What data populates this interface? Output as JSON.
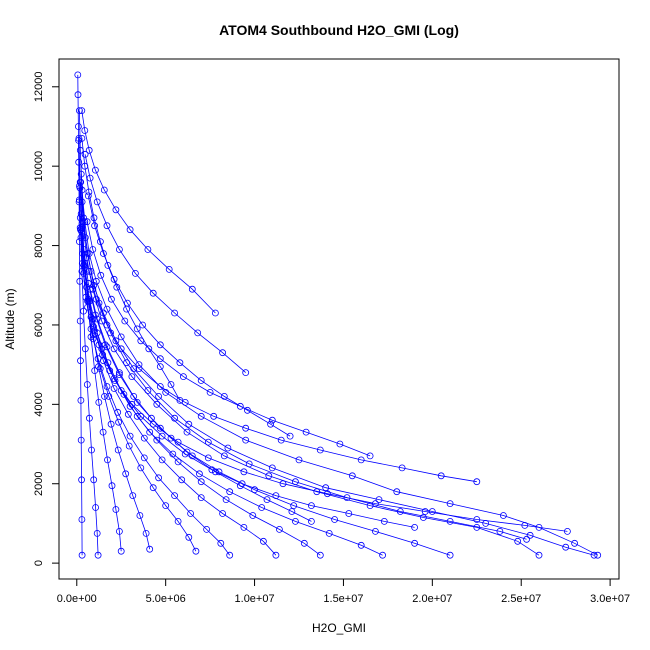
{
  "chart_data": {
    "type": "line",
    "title": "ATOM4 Southbound H2O_GMI (Log)",
    "xlabel": "H2O_GMI",
    "ylabel": "Altitude (m)",
    "xlim": [
      -1000000,
      30500000
    ],
    "ylim": [
      -400,
      12700
    ],
    "x_ticks": [
      0,
      5000000,
      10000000,
      15000000,
      20000000,
      25000000,
      30000000
    ],
    "x_tick_labels": [
      "0.0e+00",
      "5.0e+06",
      "1.0e+07",
      "1.5e+07",
      "2.0e+07",
      "2.5e+07",
      "3.0e+07"
    ],
    "y_ticks": [
      0,
      2000,
      4000,
      6000,
      8000,
      10000,
      12000
    ],
    "y_tick_labels": [
      "0",
      "2000",
      "4000",
      "6000",
      "8000",
      "10000",
      "12000"
    ],
    "marker": "open-circle",
    "series_color": "#0000ff",
    "grid": false,
    "legend": "none",
    "series": [
      {
        "x": [
          29300000,
          28000000,
          26000000,
          24000000,
          21000000,
          18000000,
          15500000,
          12500000,
          9500000,
          7000000,
          5000000,
          3500000,
          2500000,
          1700000,
          1100000,
          700000,
          450000,
          300000,
          200000,
          150000
        ],
        "y": [
          200,
          500,
          900,
          1200,
          1500,
          1800,
          2200,
          2600,
          3100,
          3700,
          4300,
          5000,
          5700,
          6400,
          7100,
          7800,
          8600,
          9400,
          10400,
          11400
        ]
      },
      {
        "x": [
          29100000,
          27500000,
          25500000,
          23000000,
          20000000,
          17000000,
          14000000,
          11000000,
          8500000,
          6300000,
          4600000,
          3200000,
          2200000,
          1500000,
          950000,
          600000,
          380000,
          250000
        ],
        "y": [
          200,
          400,
          700,
          1000,
          1300,
          1600,
          1900,
          2400,
          2900,
          3500,
          4200,
          4900,
          5600,
          6300,
          7000,
          7800,
          8700,
          9800
        ]
      },
      {
        "x": [
          26000000,
          24800000,
          22500000,
          19500000,
          16500000,
          13500000,
          10800000,
          8300000,
          6200000,
          4500000,
          3100000,
          2100000,
          1400000,
          900000,
          550000,
          350000,
          220000
        ],
        "y": [
          200,
          550,
          900,
          1150,
          1450,
          1800,
          2200,
          2700,
          3300,
          4000,
          4700,
          5400,
          6100,
          6900,
          7700,
          8600,
          9600
        ]
      },
      {
        "x": [
          25300000,
          23800000,
          21000000,
          18200000,
          15200000,
          12300000,
          9700000,
          7400000,
          5500000,
          4000000,
          2800000,
          1900000,
          1250000,
          800000,
          480000,
          300000
        ],
        "y": [
          600,
          800,
          1050,
          1300,
          1650,
          2050,
          2500,
          3050,
          3650,
          4350,
          5050,
          5800,
          6550,
          7350,
          8200,
          9100
        ]
      },
      {
        "x": [
          21000000,
          19000000,
          16800000,
          14500000,
          12200000,
          10000000,
          8000000,
          6200000,
          4700000,
          3400000,
          2400000,
          1600000,
          1050000,
          650000,
          400000,
          250000
        ],
        "y": [
          200,
          500,
          800,
          1100,
          1450,
          1850,
          2300,
          2800,
          3400,
          4050,
          4750,
          5500,
          6250,
          7050,
          7900,
          8800
        ]
      },
      {
        "x": [
          17200000,
          16000000,
          14200000,
          12300000,
          10400000,
          8600000,
          6900000,
          5400000,
          4100000,
          3000000,
          2100000,
          1400000,
          900000,
          550000,
          330000,
          200000
        ],
        "y": [
          200,
          450,
          750,
          1050,
          1400,
          1800,
          2250,
          2750,
          3300,
          3950,
          4650,
          5400,
          6150,
          6950,
          7800,
          8700
        ]
      },
      {
        "x": [
          13700000,
          12800000,
          11400000,
          9900000,
          8400000,
          7000000,
          5700000,
          4500000,
          3400000,
          2500000,
          1750000,
          1150000,
          730000,
          450000,
          270000
        ],
        "y": [
          200,
          500,
          850,
          1200,
          1600,
          2050,
          2550,
          3100,
          3700,
          4350,
          5050,
          5800,
          6600,
          7450,
          8350
        ]
      },
      {
        "x": [
          11200000,
          10500000,
          9400000,
          8200000,
          7000000,
          5900000,
          4800000,
          3800000,
          2900000,
          2100000,
          1500000,
          1000000,
          640000,
          390000,
          230000
        ],
        "y": [
          200,
          550,
          900,
          1250,
          1650,
          2100,
          2600,
          3150,
          3750,
          4400,
          5100,
          5850,
          6650,
          7500,
          8400
        ]
      },
      {
        "x": [
          8600000,
          8100000,
          7300000,
          6400000,
          5500000,
          4600000,
          3800000,
          3000000,
          2300000,
          1700000,
          1200000,
          800000,
          510000,
          310000,
          190000
        ],
        "y": [
          200,
          500,
          850,
          1250,
          1700,
          2150,
          2650,
          3200,
          3800,
          4450,
          5150,
          5900,
          6700,
          7550,
          8450
        ]
      },
      {
        "x": [
          6700000,
          6300000,
          5700000,
          5000000,
          4300000,
          3600000,
          2950000,
          2350000,
          1800000,
          1320000,
          920000,
          610000,
          390000,
          240000,
          150000
        ],
        "y": [
          300,
          650,
          1050,
          1450,
          1900,
          2400,
          2950,
          3550,
          4200,
          4900,
          5650,
          6450,
          7300,
          8200,
          9150
        ]
      },
      {
        "x": [
          4100000,
          3900000,
          3550000,
          3150000,
          2750000,
          2330000,
          1930000,
          1560000,
          1220000,
          920000,
          660000,
          450000,
          290000,
          180000
        ],
        "y": [
          350,
          750,
          1200,
          1700,
          2250,
          2850,
          3500,
          4200,
          4950,
          5750,
          6600,
          7500,
          8450,
          9450
        ]
      },
      {
        "x": [
          2500000,
          2400000,
          2200000,
          1980000,
          1730000,
          1480000,
          1240000,
          1010000,
          800000,
          610000,
          440000,
          300000,
          190000,
          120000
        ],
        "y": [
          300,
          800,
          1350,
          1950,
          2600,
          3300,
          4050,
          4850,
          5700,
          6600,
          7550,
          8550,
          9600,
          10700
        ]
      },
      {
        "x": [
          1200000,
          1150000,
          1060000,
          950000,
          830000,
          710000,
          590000,
          480000,
          380000,
          290000,
          210000,
          150000,
          100000
        ],
        "y": [
          200,
          750,
          1400,
          2100,
          2850,
          3650,
          4500,
          5400,
          6350,
          7350,
          8400,
          9500,
          10650
        ]
      },
      {
        "x": [
          300000,
          290000,
          270000,
          250000,
          230000,
          210000,
          190000,
          170000,
          150000,
          130000,
          110000,
          90000,
          70000,
          60000
        ],
        "y": [
          200,
          1100,
          2100,
          3100,
          4100,
          5100,
          6100,
          7100,
          8100,
          9100,
          10100,
          11000,
          11800,
          12300
        ]
      },
      {
        "x": [
          7800000,
          6500000,
          5200000,
          4000000,
          3000000,
          2200000,
          1550000,
          1050000,
          700000,
          450000,
          280000
        ],
        "y": [
          6300,
          6900,
          7400,
          7900,
          8400,
          8900,
          9400,
          9900,
          10400,
          10900,
          11400
        ]
      },
      {
        "x": [
          9500000,
          8200000,
          6800000,
          5500000,
          4300000,
          3300000,
          2400000,
          1700000,
          1150000,
          750000,
          470000
        ],
        "y": [
          4800,
          5300,
          5800,
          6300,
          6800,
          7300,
          7900,
          8500,
          9100,
          9700,
          10300
        ]
      },
      {
        "x": [
          16500000,
          14800000,
          12900000,
          11000000,
          9200000,
          7500000,
          6000000,
          4700000,
          3600000,
          2700000,
          1950000,
          1350000,
          900000,
          580000
        ],
        "y": [
          2700,
          3000,
          3300,
          3600,
          3950,
          4300,
          4700,
          5150,
          5600,
          6100,
          6650,
          7250,
          7900,
          8600
        ]
      },
      {
        "x": [
          22500000,
          20500000,
          18300000,
          16000000,
          13700000,
          11500000,
          9500000,
          7700000,
          6100000,
          4700000,
          3500000,
          2500000,
          1700000,
          1100000,
          700000
        ],
        "y": [
          2050,
          2200,
          2400,
          2600,
          2850,
          3100,
          3400,
          3700,
          4050,
          4450,
          4900,
          5400,
          6000,
          6650,
          7350
        ]
      },
      {
        "x": [
          27600000,
          25200000,
          22500000,
          19600000,
          16800000,
          14100000,
          11600000,
          9400000,
          7400000,
          5700000,
          4300000,
          3100000,
          2150000,
          1450000,
          950000
        ],
        "y": [
          800,
          950,
          1100,
          1300,
          1500,
          1750,
          2000,
          2300,
          2650,
          3050,
          3500,
          4000,
          4600,
          5250,
          5950
        ]
      },
      {
        "x": [
          13200000,
          12100000,
          10700000,
          9200000,
          7800000,
          6500000,
          5300000,
          4200000,
          3200000,
          2400000,
          1700000,
          1150000,
          750000
        ],
        "y": [
          1050,
          1300,
          1600,
          1950,
          2300,
          2700,
          3150,
          3650,
          4200,
          4800,
          5450,
          6150,
          6900
        ]
      },
      {
        "x": [
          19000000,
          17300000,
          15300000,
          13200000,
          11200000,
          9300000,
          7600000,
          6100000,
          4800000,
          3600000,
          2650000,
          1850000,
          1250000,
          800000
        ],
        "y": [
          900,
          1050,
          1250,
          1450,
          1700,
          2000,
          2350,
          2750,
          3200,
          3700,
          4250,
          4850,
          5500,
          6200
        ]
      },
      {
        "x": [
          5800000,
          5300000,
          4700000,
          4050000,
          3400000,
          2800000,
          2250000,
          1750000,
          1330000,
          970000,
          680000,
          450000,
          290000
        ],
        "y": [
          4100,
          4500,
          4950,
          5400,
          5900,
          6400,
          6950,
          7500,
          8100,
          8700,
          9350,
          10000,
          10700
        ]
      },
      {
        "x": [
          12000000,
          10900000,
          9600000,
          8300000,
          7000000,
          5800000,
          4700000,
          3700000,
          2850000,
          2100000,
          1500000,
          1000000,
          650000
        ],
        "y": [
          3200,
          3500,
          3850,
          4200,
          4600,
          5050,
          5500,
          6000,
          6550,
          7150,
          7800,
          8500,
          9250
        ]
      }
    ]
  }
}
